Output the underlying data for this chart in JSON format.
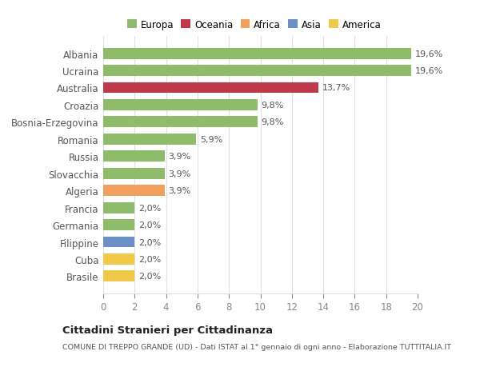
{
  "categories": [
    "Brasile",
    "Cuba",
    "Filippine",
    "Germania",
    "Francia",
    "Algeria",
    "Slovacchia",
    "Russia",
    "Romania",
    "Bosnia-Erzegovina",
    "Croazia",
    "Australia",
    "Ucraina",
    "Albania"
  ],
  "values": [
    2.0,
    2.0,
    2.0,
    2.0,
    2.0,
    3.9,
    3.9,
    3.9,
    5.9,
    9.8,
    9.8,
    13.7,
    19.6,
    19.6
  ],
  "labels": [
    "2,0%",
    "2,0%",
    "2,0%",
    "2,0%",
    "2,0%",
    "3,9%",
    "3,9%",
    "3,9%",
    "5,9%",
    "9,8%",
    "9,8%",
    "13,7%",
    "19,6%",
    "19,6%"
  ],
  "colors": [
    "#f0c84a",
    "#f0c84a",
    "#6b8fc9",
    "#8fbc6a",
    "#8fbc6a",
    "#f0a05a",
    "#8fbc6a",
    "#8fbc6a",
    "#8fbc6a",
    "#8fbc6a",
    "#8fbc6a",
    "#c0394b",
    "#8fbc6a",
    "#8fbc6a"
  ],
  "legend_labels": [
    "Europa",
    "Oceania",
    "Africa",
    "Asia",
    "America"
  ],
  "legend_colors": [
    "#8fbc6a",
    "#c0394b",
    "#f0a05a",
    "#6b8fc9",
    "#f0c84a"
  ],
  "xlim": [
    0,
    20
  ],
  "xticks": [
    0,
    2,
    4,
    6,
    8,
    10,
    12,
    14,
    16,
    18,
    20
  ],
  "title": "Cittadini Stranieri per Cittadinanza",
  "subtitle": "COMUNE DI TREPPO GRANDE (UD) - Dati ISTAT al 1° gennaio di ogni anno - Elaborazione TUTTITALIA.IT",
  "background_color": "#ffffff",
  "bar_height": 0.65,
  "grid_color": "#e0e0e0",
  "label_color": "#555555",
  "tick_color": "#888888"
}
